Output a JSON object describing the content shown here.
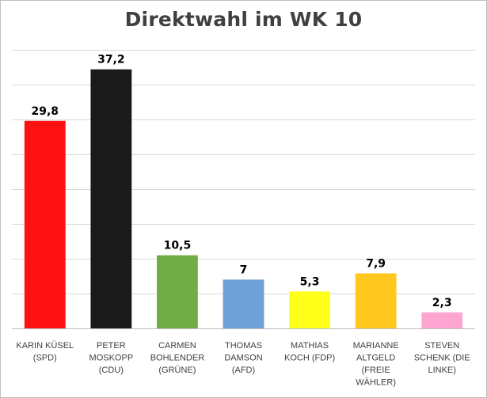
{
  "chart_data": {
    "type": "bar",
    "title": "Direktwahl im WK 10",
    "xlabel": "",
    "ylabel": "",
    "ylim": [
      0,
      40
    ],
    "ytick_step": 5,
    "grid": true,
    "legend": "none",
    "categories": [
      [
        "KARIN KÜSEL",
        "(SPD)"
      ],
      [
        "PETER",
        "MOSKOPP",
        "(CDU)"
      ],
      [
        "CARMEN",
        "BOHLENDER",
        "(GRÜNE)"
      ],
      [
        "THOMAS",
        "DAMSON",
        "(AFD)"
      ],
      [
        "MATHIAS",
        "KOCH (FDP)"
      ],
      [
        "MARIANNE",
        "ALTGELD",
        "(FREIE",
        "WÄHLER)"
      ],
      [
        "STEVEN",
        "SCHENK (DIE",
        "LINKE)"
      ]
    ],
    "values": [
      29.8,
      37.2,
      10.5,
      7,
      5.3,
      7.9,
      2.3
    ],
    "value_labels": [
      "29,8",
      "37,2",
      "10,5",
      "7",
      "5,3",
      "7,9",
      "2,3"
    ],
    "colors": [
      "#ff1111",
      "#1a1a1a",
      "#70ad47",
      "#6fa0d8",
      "#ffff1a",
      "#ffc81e",
      "#ffa5d2"
    ]
  }
}
